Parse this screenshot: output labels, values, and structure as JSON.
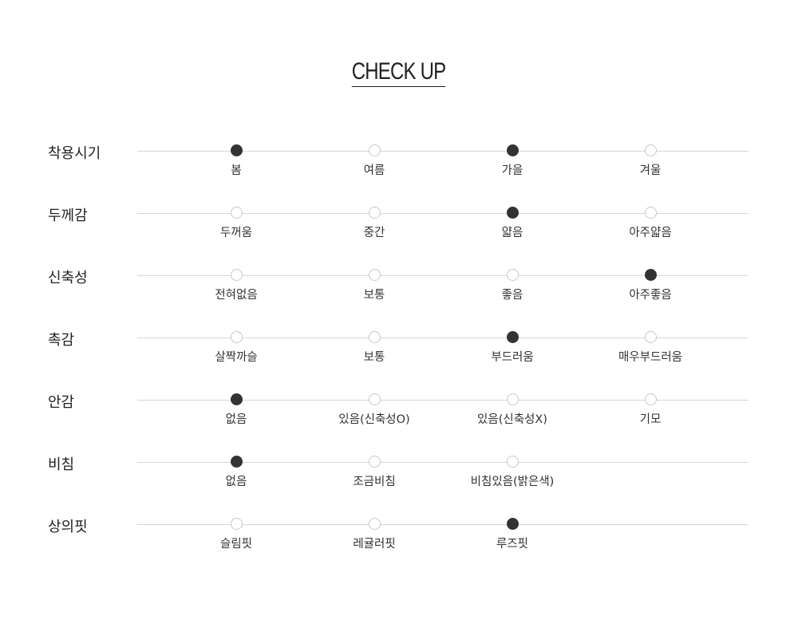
{
  "title": "CHECK UP",
  "colors": {
    "selected": "#333333",
    "unselected_border": "#c8c8c8",
    "line": "#d6d6d6"
  },
  "rows": [
    {
      "label": "착용시기",
      "options": [
        {
          "label": "봄",
          "selected": true
        },
        {
          "label": "여름",
          "selected": false
        },
        {
          "label": "가을",
          "selected": true
        },
        {
          "label": "겨울",
          "selected": false
        }
      ]
    },
    {
      "label": "두께감",
      "options": [
        {
          "label": "두꺼움",
          "selected": false
        },
        {
          "label": "중간",
          "selected": false
        },
        {
          "label": "얇음",
          "selected": true
        },
        {
          "label": "아주얇음",
          "selected": false
        }
      ]
    },
    {
      "label": "신축성",
      "options": [
        {
          "label": "전혀없음",
          "selected": false
        },
        {
          "label": "보통",
          "selected": false
        },
        {
          "label": "좋음",
          "selected": false
        },
        {
          "label": "아주좋음",
          "selected": true
        }
      ]
    },
    {
      "label": "촉감",
      "options": [
        {
          "label": "살짝까슬",
          "selected": false
        },
        {
          "label": "보통",
          "selected": false
        },
        {
          "label": "부드러움",
          "selected": true
        },
        {
          "label": "매우부드러움",
          "selected": false
        }
      ]
    },
    {
      "label": "안감",
      "options": [
        {
          "label": "없음",
          "selected": true
        },
        {
          "label": "있음(신축성O)",
          "selected": false
        },
        {
          "label": "있음(신축성X)",
          "selected": false
        },
        {
          "label": "기모",
          "selected": false
        }
      ]
    },
    {
      "label": "비침",
      "options": [
        {
          "label": "없음",
          "selected": true
        },
        {
          "label": "조금비침",
          "selected": false
        },
        {
          "label": "비침있음(밝은색)",
          "selected": false
        }
      ]
    },
    {
      "label": "상의핏",
      "options": [
        {
          "label": "슬림핏",
          "selected": false
        },
        {
          "label": "레귤러핏",
          "selected": false
        },
        {
          "label": "루즈핏",
          "selected": true
        }
      ]
    }
  ]
}
